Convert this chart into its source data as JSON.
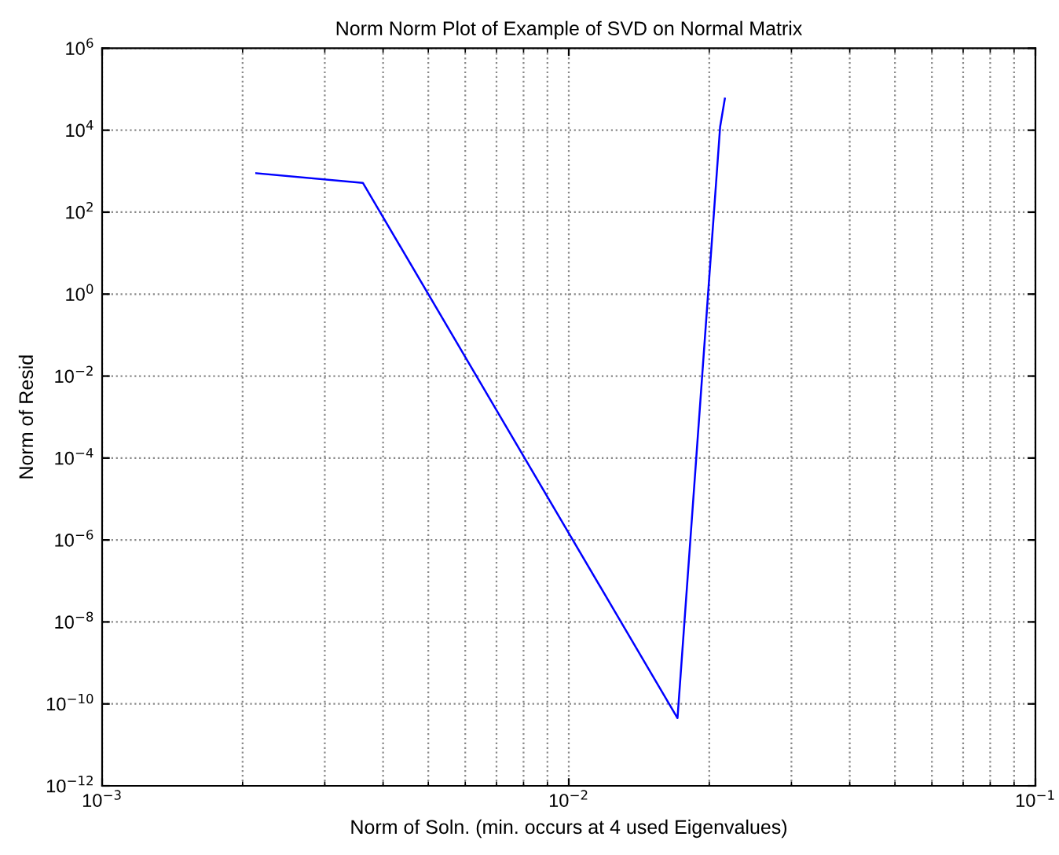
{
  "chart_data": {
    "type": "line",
    "title": "Norm Norm Plot of Example of SVD on Normal Matrix",
    "xlabel": "Norm of Soln. (min. occurs at 4 used Eigenvalues)",
    "ylabel": "Norm of Resid",
    "log": "xy",
    "grid": true,
    "marker": "none",
    "line_style": "solid",
    "x": [
      0.00214,
      0.00362,
      0.0171,
      0.0211,
      0.0216
    ],
    "series": [
      {
        "color": "#0000ff",
        "values": [
          890,
          520,
          4.5e-11,
          12000.0,
          59000.0
        ]
      }
    ],
    "xlim": [
      0.001,
      0.1
    ],
    "xticks": [
      {
        "value": 0.001,
        "label": "10$^{−3}$"
      },
      {
        "value": 0.01,
        "label": "10$^{−2}$"
      },
      {
        "value": 0.1,
        "label": "10$^{−1}$"
      }
    ],
    "ylim": [
      1e-12,
      1000000.0
    ],
    "yticks": [
      {
        "value": 1e-12,
        "label": "10$^{−12}$"
      },
      {
        "value": 1e-10,
        "label": "10$^{−10}$"
      },
      {
        "value": 1e-08,
        "label": "10$^{−8}$"
      },
      {
        "value": 1e-06,
        "label": "10$^{−6}$"
      },
      {
        "value": 0.0001,
        "label": "10$^{−4}$"
      },
      {
        "value": 0.01,
        "label": "10$^{−2}$"
      },
      {
        "value": 1,
        "label": "10$^{0}$"
      },
      {
        "value": 100,
        "label": "10$^{2}$"
      },
      {
        "value": 10000,
        "label": "10$^{4}$"
      },
      {
        "value": 1000000,
        "label": "10$^{6}$"
      }
    ]
  }
}
